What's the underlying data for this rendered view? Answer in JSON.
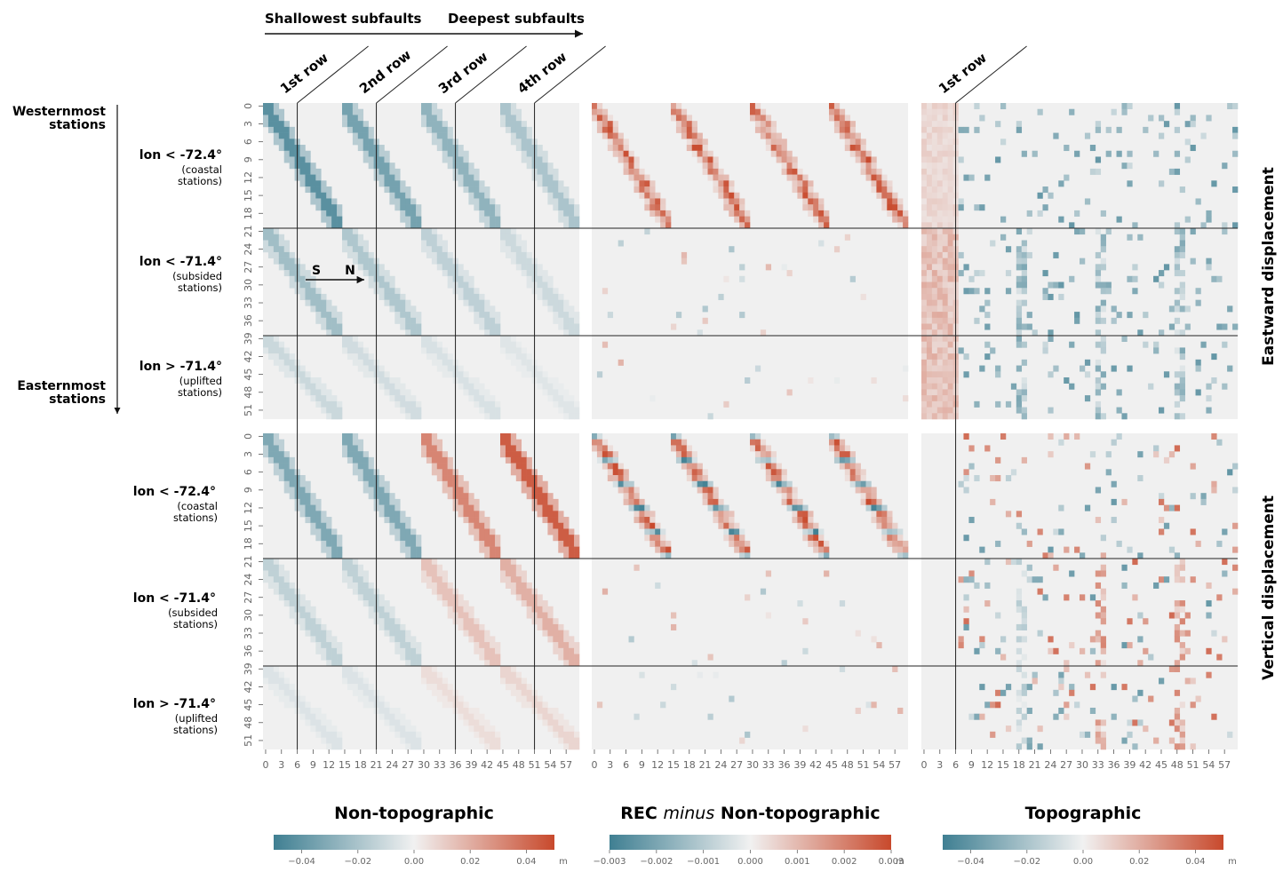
{
  "chart_data": {
    "type": "heatmap",
    "header": {
      "left": "Shallowest subfaults",
      "right": "Deepest subfaults"
    },
    "row_labels": [
      "1st row",
      "2nd row",
      "3rd row",
      "4th row"
    ],
    "topo_row_label": "1st row",
    "station_axis": {
      "westernmost": "Westernmost stations",
      "easternmost": "Easternmost stations"
    },
    "station_groups": [
      {
        "label": "lon < -72.4°",
        "sub1": "(coastal",
        "sub2": "stations)",
        "range": [
          0,
          20
        ]
      },
      {
        "label": "lon < -71.4°",
        "sub1": "(subsided",
        "sub2": "stations)",
        "range": [
          21,
          38
        ]
      },
      {
        "label": "lon > -71.4°",
        "sub1": "(uplifted",
        "sub2": "stations)",
        "range": [
          39,
          52
        ]
      }
    ],
    "sn_arrow": {
      "s": "S",
      "n": "N"
    },
    "y_ticks": [
      0,
      3,
      6,
      9,
      12,
      15,
      18,
      21,
      24,
      27,
      30,
      33,
      36,
      39,
      42,
      45,
      48,
      51
    ],
    "x_ticks": [
      0,
      3,
      6,
      9,
      12,
      15,
      18,
      21,
      24,
      27,
      30,
      33,
      36,
      39,
      42,
      45,
      48,
      51,
      54,
      57
    ],
    "n_stations": 53,
    "n_subfaults": 60,
    "displacement_labels": [
      "Eastward displacement",
      "Vertical displacement"
    ],
    "panels": [
      {
        "title_parts": [
          "Non-topographic"
        ],
        "colorbar": {
          "min": -0.05,
          "max": 0.05,
          "ticks": [
            "−0.04",
            "−0.02",
            "0.00",
            "0.02",
            "0.04"
          ],
          "unit": "m"
        }
      },
      {
        "title_parts": [
          "REC ",
          "minus",
          " Non-topographic"
        ],
        "colorbar": {
          "min": -0.003,
          "max": 0.003,
          "ticks": [
            "−0.003",
            "−0.002",
            "−0.001",
            "0.000",
            "0.001",
            "0.002",
            "0.003"
          ],
          "unit": "m"
        }
      },
      {
        "title_parts": [
          "Topographic"
        ],
        "colorbar": {
          "min": -0.05,
          "max": 0.05,
          "ticks": [
            "−0.04",
            "−0.02",
            "0.00",
            "0.02",
            "0.04"
          ],
          "unit": "m"
        }
      }
    ],
    "colors": {
      "negative": "#3f7f92",
      "neutral": "#f1f1f1",
      "positive": "#c8492c",
      "background": "#f0f0f0"
    }
  }
}
